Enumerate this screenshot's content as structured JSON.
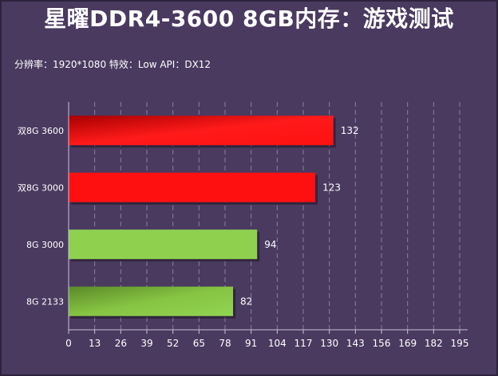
{
  "title": "星曜DDR4-3600 8GB内存：游戏测试",
  "subtitle": "分辨率：1920*1080  特效：Low  API：DX12",
  "colors": {
    "background": "#4a3a60",
    "grid": "#9a8fae",
    "axis": "#c9c3d4",
    "text": "#ffffff",
    "red": "#ff1010",
    "red_dark": "#b40000",
    "green": "#8fd14f",
    "green_dark": "#5a8a28"
  },
  "chart_data": {
    "type": "bar",
    "orientation": "horizontal",
    "categories": [
      "双8G 3600",
      "双8G 3000",
      "8G 3000",
      "8G 2133"
    ],
    "values": [
      132,
      123,
      94,
      82
    ],
    "bar_colors": [
      "red-gradient",
      "red",
      "green",
      "green-gradient"
    ],
    "xlim": [
      0,
      195
    ],
    "xticks": [
      0,
      13,
      26,
      39,
      52,
      65,
      78,
      91,
      104,
      117,
      130,
      143,
      156,
      169,
      182,
      195
    ],
    "grid": "vertical dashed",
    "legend": "none"
  }
}
